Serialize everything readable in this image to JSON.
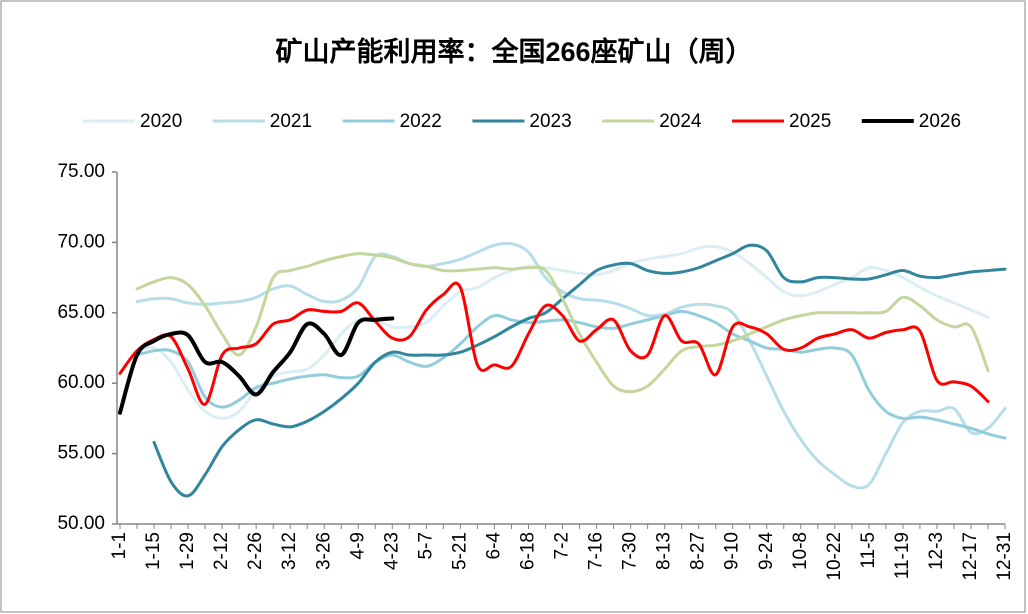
{
  "chart_data": {
    "type": "line",
    "title": "矿山产能利用率：全国266座矿山（周）",
    "categories": [
      "1-1",
      null,
      "1-15",
      null,
      "1-29",
      null,
      "2-12",
      null,
      "2-26",
      null,
      "3-12",
      null,
      "3-26",
      null,
      "4-9",
      null,
      "4-23",
      null,
      "5-7",
      null,
      "5-21",
      null,
      "6-4",
      null,
      "6-18",
      null,
      "7-2",
      null,
      "7-16",
      null,
      "7-30",
      null,
      "8-13",
      null,
      "8-27",
      null,
      "9-10",
      null,
      "9-24",
      null,
      "10-8",
      null,
      "10-22",
      null,
      "11-5",
      null,
      "11-19",
      null,
      "12-3",
      null,
      "12-17",
      null,
      "12-31"
    ],
    "ylim": [
      50,
      75
    ],
    "yticks": [
      {
        "value": 50,
        "label": "50.00"
      },
      {
        "value": 55,
        "label": "55.00"
      },
      {
        "value": 60,
        "label": "60.00"
      },
      {
        "value": 65,
        "label": "65.00"
      },
      {
        "value": 70,
        "label": "70.00"
      },
      {
        "value": 75,
        "label": "75.00"
      }
    ],
    "grid": false,
    "legend": "top",
    "series": [
      {
        "name": "2020",
        "color": "#daeef3",
        "values": [
          null,
          62.3,
          62.5,
          61.5,
          59.5,
          58,
          57.5,
          58,
          59.5,
          60.5,
          60.8,
          61,
          62,
          63.5,
          64.5,
          64.5,
          64,
          64,
          64.3,
          65.5,
          66.5,
          66.8,
          67.5,
          68,
          68.3,
          68.2,
          68,
          67.8,
          67.7,
          68,
          68.5,
          68.8,
          69,
          69.2,
          69.6,
          69.7,
          69.3,
          68.5,
          67.5,
          66.5,
          66.2,
          66.5,
          67,
          67.5,
          68.2,
          68,
          67.5,
          66.8,
          66.2,
          65.7,
          65.2,
          64.7,
          null
        ]
      },
      {
        "name": "2021",
        "color": "#b7dee8",
        "values": [
          null,
          65.8,
          66,
          66,
          65.7,
          65.6,
          65.7,
          65.8,
          66.1,
          66.7,
          66.9,
          66.3,
          65.8,
          65.9,
          66.8,
          69,
          69,
          68.5,
          68.3,
          68.5,
          68.8,
          69.3,
          69.8,
          69.9,
          69.3,
          67.5,
          66.5,
          66,
          65.9,
          65.7,
          65.3,
          64.8,
          64.9,
          65.4,
          65.6,
          65.5,
          65,
          63,
          60.5,
          58,
          56,
          54.5,
          53.5,
          52.7,
          52.8,
          55,
          57.2,
          58,
          58,
          58.2,
          56.5,
          56.8,
          58.2
        ]
      },
      {
        "name": "2022",
        "color": "#92cddc",
        "values": [
          null,
          62,
          62.3,
          62.3,
          61.5,
          59,
          58.3,
          58.8,
          59.7,
          60,
          60.3,
          60.5,
          60.6,
          60.4,
          60.5,
          61.5,
          62,
          61.5,
          61.2,
          61.8,
          62.8,
          64,
          64.8,
          64.5,
          64.3,
          64.4,
          64.5,
          64.3,
          64,
          63.9,
          64.2,
          64.5,
          64.8,
          65.1,
          64.8,
          64.3,
          63.5,
          63,
          62.5,
          62.4,
          62.2,
          62.4,
          62.5,
          62,
          59.5,
          58,
          57.5,
          57.6,
          57.4,
          57.1,
          56.8,
          56.4,
          56.1
        ]
      },
      {
        "name": "2023",
        "color": "#31859c",
        "values": [
          null,
          null,
          55.8,
          53,
          52,
          53.5,
          55.5,
          56.7,
          57.4,
          57.1,
          56.9,
          57.3,
          58,
          58.9,
          60,
          61.5,
          62.2,
          62,
          62,
          62,
          62.2,
          62.7,
          63.3,
          64,
          64.6,
          65,
          66,
          67,
          68,
          68.4,
          68.5,
          68,
          67.8,
          67.9,
          68.2,
          68.7,
          69.2,
          69.8,
          69.4,
          67.5,
          67.2,
          67.5,
          67.5,
          67.4,
          67.4,
          67.7,
          68,
          67.6,
          67.5,
          67.7,
          67.9,
          68,
          68.1
        ]
      },
      {
        "name": "2024",
        "color": "#c3d69b",
        "values": [
          null,
          66.7,
          67.2,
          67.5,
          67,
          65.5,
          63.5,
          62,
          64,
          67.5,
          68,
          68.3,
          68.7,
          69,
          69.2,
          69.1,
          68.9,
          68.5,
          68.3,
          68,
          68,
          68.1,
          68.2,
          68.1,
          68.2,
          68,
          66,
          63.5,
          61.5,
          59.8,
          59.4,
          59.8,
          61,
          62.3,
          62.6,
          62.7,
          63,
          63.5,
          64,
          64.5,
          64.8,
          65,
          65,
          65,
          65,
          65.1,
          66.1,
          65.5,
          64.5,
          64,
          64,
          60.9,
          null
        ]
      },
      {
        "name": "2025",
        "color": "#ff0000",
        "values": [
          60.7,
          62.3,
          63.1,
          63.3,
          61,
          58.5,
          62,
          62.5,
          62.8,
          64.2,
          64.5,
          65.2,
          65.1,
          65.1,
          65.7,
          64.4,
          63.2,
          63.3,
          65.2,
          66.3,
          66.8,
          61.3,
          61.3,
          61.2,
          63.5,
          65.5,
          64.8,
          63,
          63.8,
          64.5,
          62.3,
          62,
          64.8,
          63,
          62.8,
          60.6,
          64,
          64,
          63.5,
          62.4,
          62.5,
          63.2,
          63.5,
          63.8,
          63.2,
          63.6,
          63.8,
          63.7,
          60.2,
          60.1,
          59.8,
          58.7,
          null
        ]
      },
      {
        "name": "2026",
        "color": "#000000",
        "values": [
          57.9,
          62,
          63,
          63.5,
          63.4,
          61.5,
          61.5,
          60.5,
          59.2,
          60.8,
          62.2,
          64.2,
          63.5,
          62,
          64.3,
          64.5,
          64.6,
          null,
          null,
          null,
          null,
          null,
          null,
          null,
          null,
          null,
          null,
          null,
          null,
          null,
          null,
          null,
          null,
          null,
          null,
          null,
          null,
          null,
          null,
          null,
          null,
          null,
          null,
          null,
          null,
          null,
          null,
          null,
          null,
          null,
          null,
          null,
          null
        ]
      }
    ]
  }
}
